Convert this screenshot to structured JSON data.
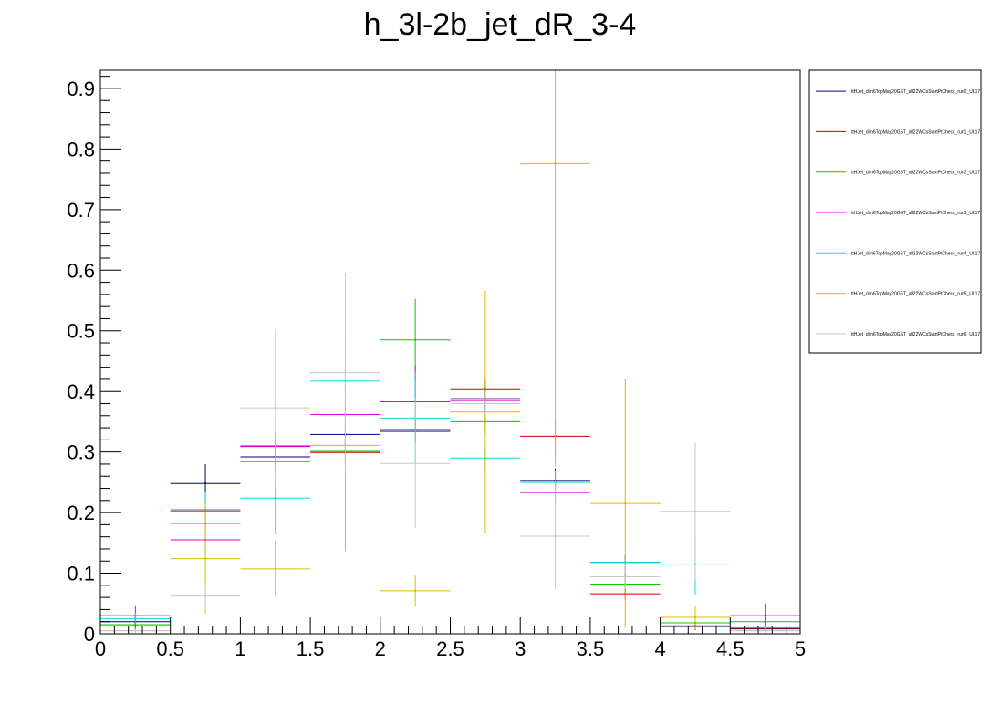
{
  "chart_data": {
    "type": "step-errorbar",
    "title": "h_3l-2b_jet_dR_3-4",
    "xlabel": "",
    "ylabel": "",
    "xlim": [
      0,
      5
    ],
    "ylim": [
      0,
      0.93
    ],
    "bin_edges": [
      0,
      0.5,
      1,
      1.5,
      2,
      2.5,
      3,
      3.5,
      4,
      4.5,
      5
    ],
    "x_ticks": [
      "0",
      "0.5",
      "1",
      "1.5",
      "2",
      "2.5",
      "3",
      "3.5",
      "4",
      "4.5",
      "5"
    ],
    "y_ticks": [
      "0",
      "0.1",
      "0.2",
      "0.3",
      "0.4",
      "0.5",
      "0.6",
      "0.7",
      "0.8",
      "0.9"
    ],
    "x_tick_values": [
      0,
      0.5,
      1,
      1.5,
      2,
      2.5,
      3,
      3.5,
      4,
      4.5,
      5
    ],
    "y_tick_values": [
      0,
      0.1,
      0.2,
      0.3,
      0.4,
      0.5,
      0.6,
      0.7,
      0.8,
      0.9
    ],
    "grid": false,
    "legend_position": "right",
    "series": [
      {
        "name": "ttHJet_dim6TopMay20GST_all22WCsStartPtCheck_run0_UL17",
        "color": "#00007f",
        "values": [
          0.02,
          0.248,
          0.292,
          0.329,
          0.334,
          0.388,
          0.253,
          0.118,
          0.012,
          0.008
        ],
        "errors": [
          0.008,
          0.032,
          0.02,
          0.02,
          0.02,
          0.02,
          0.02,
          0.012,
          0.006,
          0.004
        ]
      },
      {
        "name": "ttHJet_dim6TopMay20GST_all22WCsStartPtCheck_run1_UL17",
        "color": "#cc0000",
        "values": [
          0.013,
          0.203,
          0.31,
          0.299,
          0.337,
          0.403,
          0.326,
          0.066,
          0.013,
          0.009
        ],
        "errors": [
          0.005,
          0.025,
          0.02,
          0.02,
          0.02,
          0.02,
          0.03,
          0.01,
          0.006,
          0.004
        ]
      },
      {
        "name": "ttHJet_dim6TopMay20GST_all22WCsStartPtCheck_run2_UL17",
        "color": "#00cc00",
        "values": [
          0.015,
          0.182,
          0.284,
          0.301,
          0.485,
          0.35,
          0.25,
          0.082,
          0.018,
          0.02
        ],
        "errors": [
          0.006,
          0.025,
          0.02,
          0.02,
          0.068,
          0.02,
          0.02,
          0.01,
          0.008,
          0.006
        ]
      },
      {
        "name": "ttHJet_dim6TopMay20GST_all22WCsStartPtCheck_run3_UL17",
        "color": "#e000e0",
        "values": [
          0.03,
          0.155,
          0.309,
          0.362,
          0.383,
          0.385,
          0.233,
          0.097,
          0.013,
          0.03
        ],
        "errors": [
          0.017,
          0.025,
          0.02,
          0.02,
          0.06,
          0.02,
          0.02,
          0.01,
          0.006,
          0.02
        ]
      },
      {
        "name": "ttHJet_dim6TopMay20GST_all22WCsStartPtCheck_run4_UL17",
        "color": "#00e0e0",
        "values": [
          0.025,
          0.205,
          0.224,
          0.417,
          0.356,
          0.29,
          0.25,
          0.118,
          0.115,
          0.01
        ],
        "errors": [
          0.01,
          0.03,
          0.06,
          0.02,
          0.075,
          0.02,
          0.02,
          0.01,
          0.05,
          0.005
        ]
      },
      {
        "name": "ttHJet_dim6TopMay20GST_all22WCsStartPtCheck_run5_UL17",
        "color": "#e6b800",
        "values": [
          0.005,
          0.124,
          0.107,
          0.311,
          0.071,
          0.366,
          0.776,
          0.215,
          0.027,
          0.005
        ],
        "errors": [
          0.003,
          0.09,
          0.047,
          0.175,
          0.025,
          0.2,
          0.5,
          0.205,
          0.02,
          0.003
        ]
      },
      {
        "name": "ttHJet_dim6TopMay20GST_all22WCsStartPtCheck_run6_UL17",
        "color": "#c8c8c8",
        "values": [
          0.005,
          0.062,
          0.373,
          0.431,
          0.281,
          0.38,
          0.161,
          0.094,
          0.202,
          0.005
        ],
        "errors": [
          0.003,
          0.02,
          0.13,
          0.165,
          0.107,
          0.02,
          0.088,
          0.02,
          0.113,
          0.003
        ]
      }
    ]
  }
}
